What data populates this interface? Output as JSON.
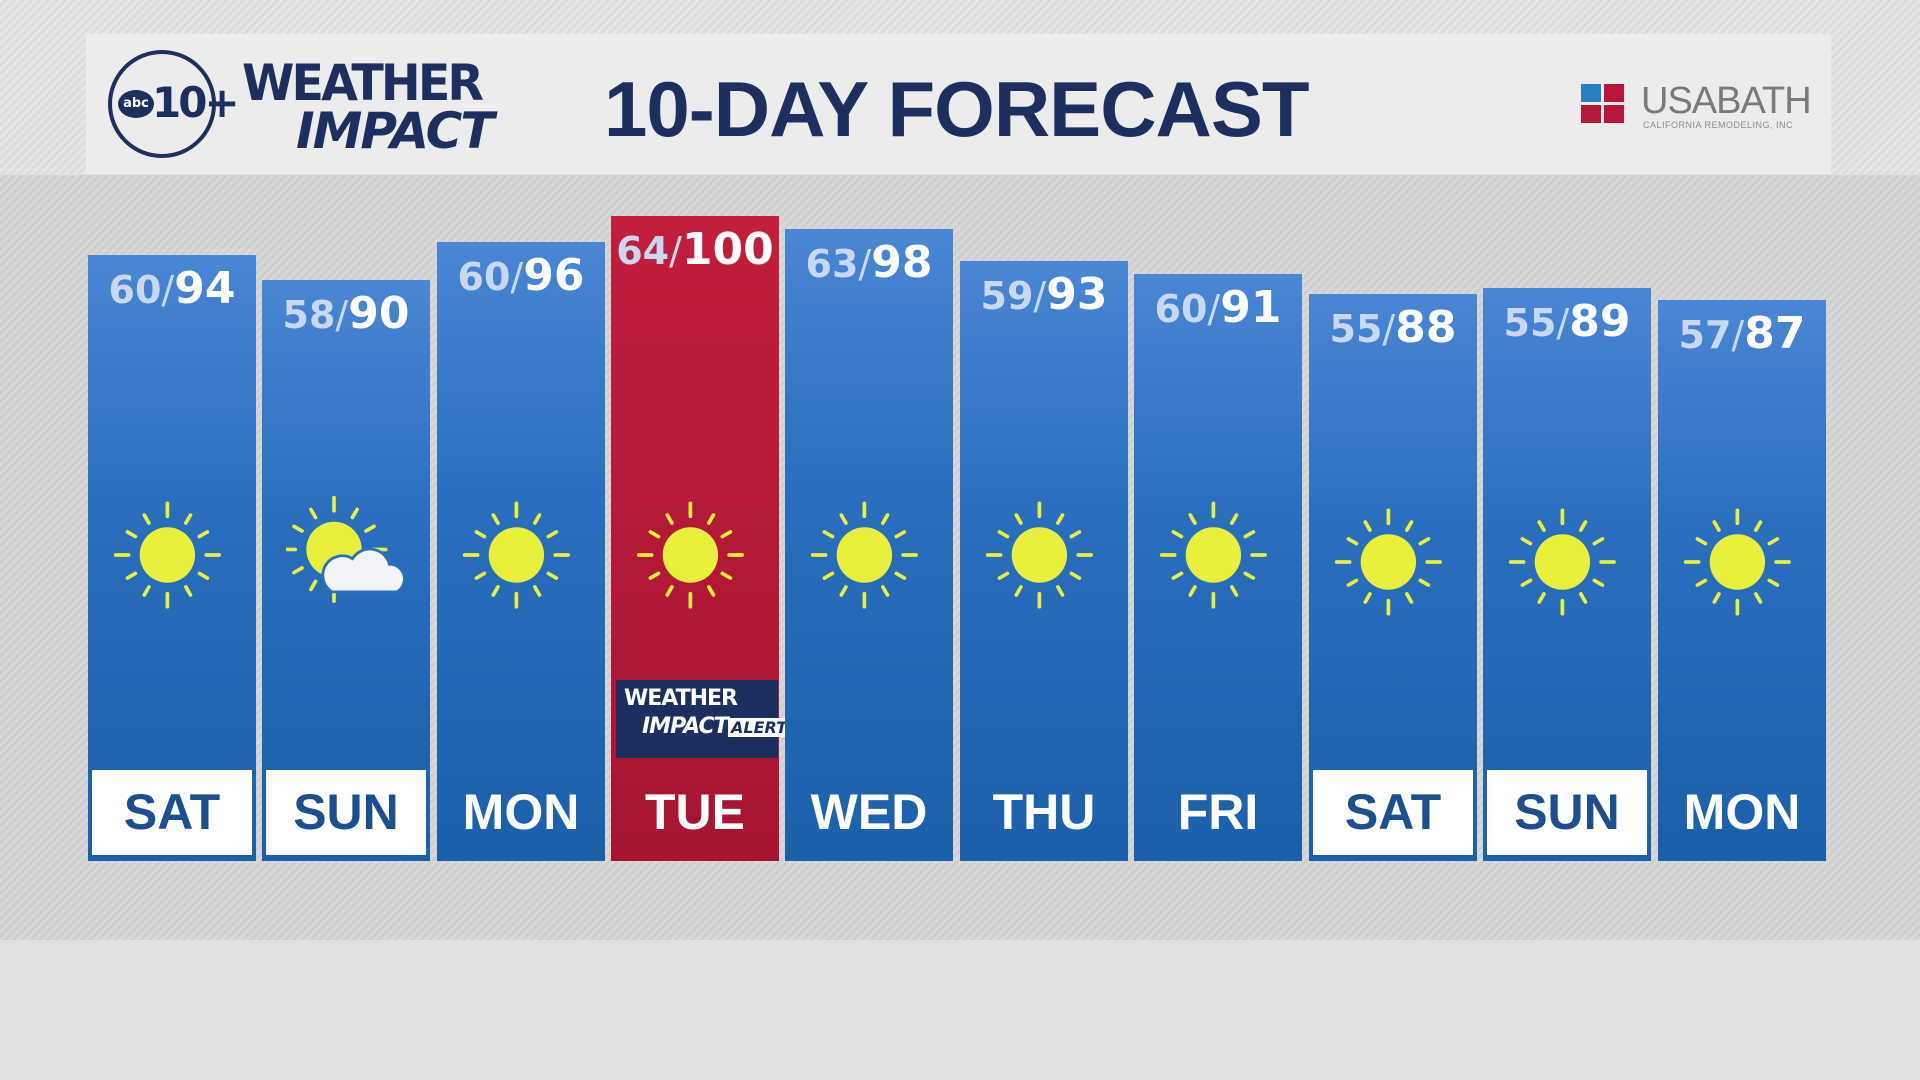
{
  "header": {
    "station_logo": "abc10+",
    "brand_line1": "WEATHER",
    "brand_line2": "IMPACT",
    "title": "10-DAY FORECAST",
    "sponsor": {
      "name": "USABATH",
      "tagline": "CALIFORNIA REMODELING, INC"
    }
  },
  "colors": {
    "bar_blue": "#2a6fbf",
    "alert_red": "#b0173a",
    "navy": "#1d2f5e",
    "sun": "#e8f03c"
  },
  "alert_badge": {
    "line1": "WEATHER",
    "line2": "IMPACT",
    "line3": "ALERT"
  },
  "days": [
    {
      "day": "SAT",
      "low": "60",
      "high": "94",
      "icon": "sunny-icon",
      "weekend": true
    },
    {
      "day": "SUN",
      "low": "58",
      "high": "90",
      "icon": "partly-cloudy-icon",
      "weekend": true
    },
    {
      "day": "MON",
      "low": "60",
      "high": "96",
      "icon": "sunny-icon",
      "weekend": false
    },
    {
      "day": "TUE",
      "low": "64",
      "high": "100",
      "icon": "sunny-icon",
      "weekend": false,
      "alert": true
    },
    {
      "day": "WED",
      "low": "63",
      "high": "98",
      "icon": "sunny-icon",
      "weekend": false
    },
    {
      "day": "THU",
      "low": "59",
      "high": "93",
      "icon": "sunny-icon",
      "weekend": false
    },
    {
      "day": "FRI",
      "low": "60",
      "high": "91",
      "icon": "sunny-icon",
      "weekend": false
    },
    {
      "day": "SAT",
      "low": "55",
      "high": "88",
      "icon": "sunny-icon",
      "weekend": true
    },
    {
      "day": "SUN",
      "low": "55",
      "high": "89",
      "icon": "sunny-icon",
      "weekend": true
    },
    {
      "day": "MON",
      "low": "57",
      "high": "87",
      "icon": "sunny-icon",
      "weekend": false
    }
  ]
}
